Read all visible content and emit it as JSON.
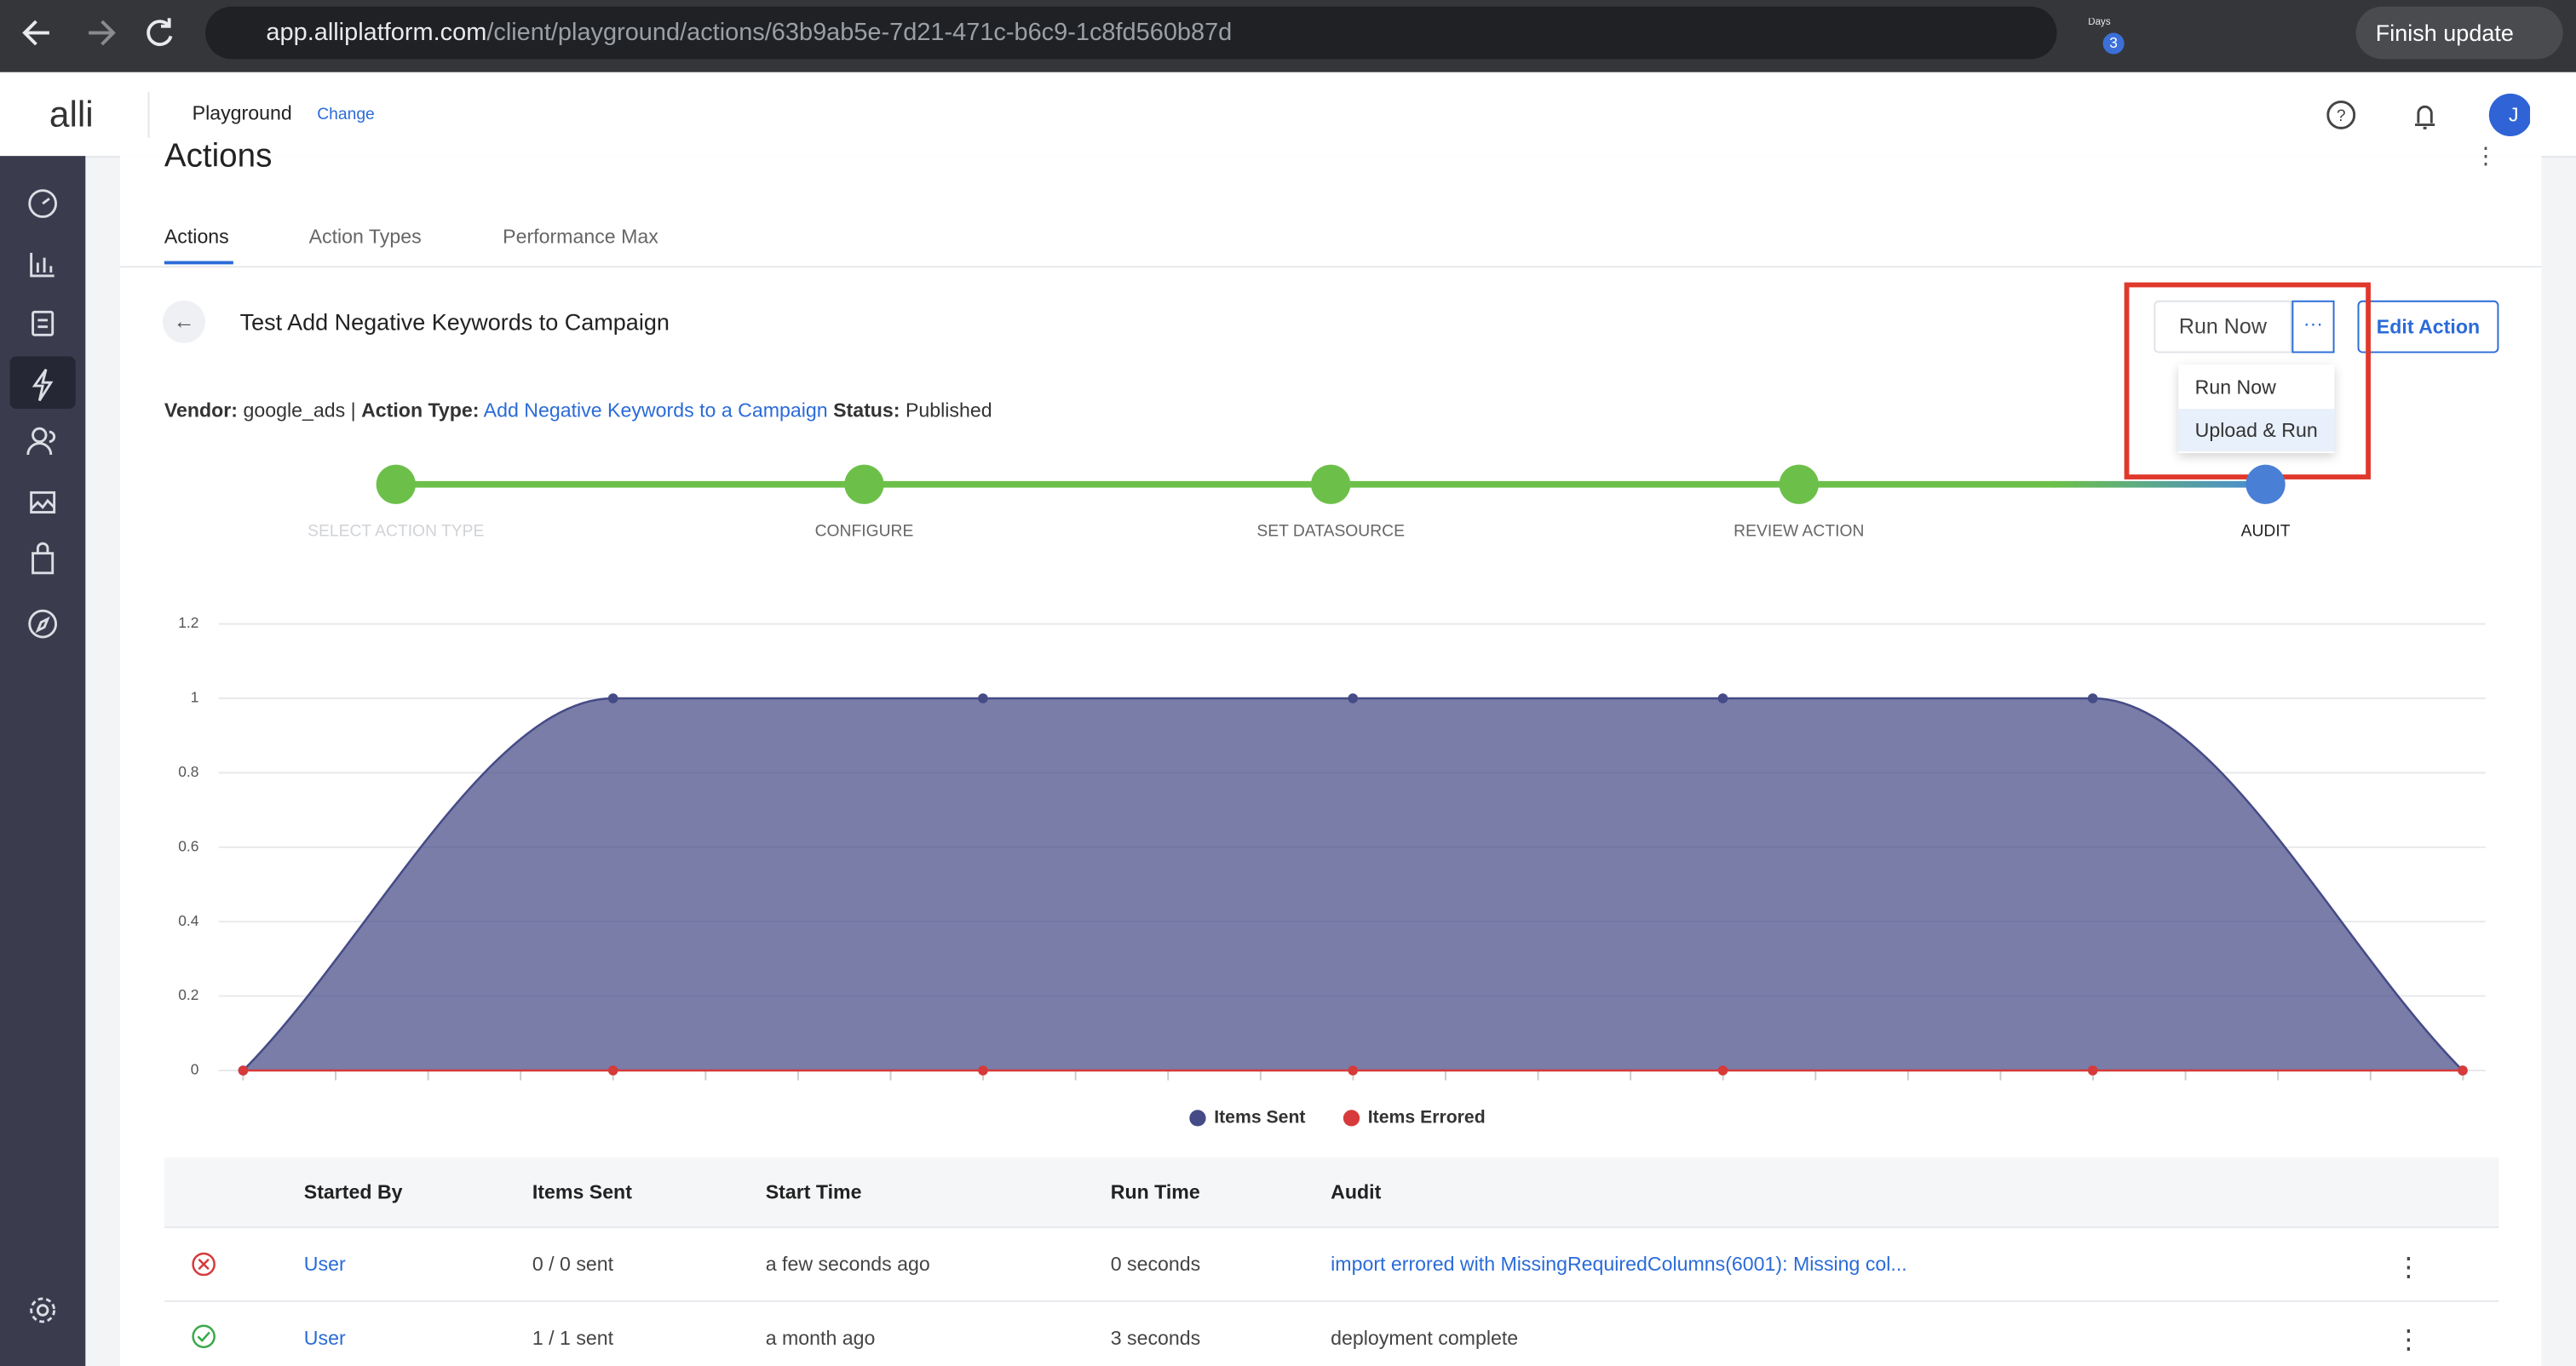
{
  "browser": {
    "url_domain": "app.alliplatform.com",
    "url_path": "/client/playground/actions/63b9ab5e-7d21-471c-b6c9-1c8fd560b87d",
    "extension_label": "Days Ur",
    "extension_badge": "3",
    "update_button": "Finish update"
  },
  "header": {
    "logo": "alli",
    "workspace": "Playground",
    "change": "Change",
    "avatar": "J"
  },
  "page": {
    "title": "Actions",
    "tabs": [
      "Actions",
      "Action Types",
      "Performance Max"
    ]
  },
  "action": {
    "name": "Test Add Negative Keywords to Campaign",
    "run_now": "Run Now",
    "more": "···",
    "edit": "Edit Action",
    "menu": [
      "Run Now",
      "Upload & Run"
    ]
  },
  "meta": {
    "vendor_label": "Vendor:",
    "vendor": "google_ads",
    "separator": "|",
    "action_type_label": "Action Type:",
    "action_type": "Add Negative Keywords to a Campaign",
    "status_label": "Status:",
    "status": "Published"
  },
  "steps": [
    "SELECT ACTION TYPE",
    "CONFIGURE",
    "SET DATASOURCE",
    "REVIEW ACTION",
    "AUDIT"
  ],
  "chart_data": {
    "type": "area",
    "categories": [
      null,
      null,
      null,
      null,
      null,
      null,
      null
    ],
    "series": [
      {
        "name": "Items Sent",
        "color": "#454b86",
        "values": [
          0,
          1,
          1,
          1,
          1,
          1,
          0
        ]
      },
      {
        "name": "Items Errored",
        "color": "#d63a3a",
        "values": [
          0,
          0,
          0,
          0,
          0,
          0,
          0
        ]
      }
    ],
    "ylim": [
      0,
      1.2
    ],
    "yticks": [
      0,
      0.2,
      0.4,
      0.6,
      0.8,
      1,
      1.2
    ],
    "grid": true,
    "legend": "bottom"
  },
  "table": {
    "headers": [
      "Started By",
      "Items Sent",
      "Start Time",
      "Run Time",
      "Audit"
    ],
    "rows": [
      [
        "User",
        "0 / 0 sent",
        "a few seconds ago",
        "0 seconds",
        "import errored with MissingRequiredColumns(6001): Missing col..."
      ],
      [
        "User",
        "1 / 1 sent",
        "a month ago",
        "3 seconds",
        "deployment complete"
      ]
    ]
  }
}
